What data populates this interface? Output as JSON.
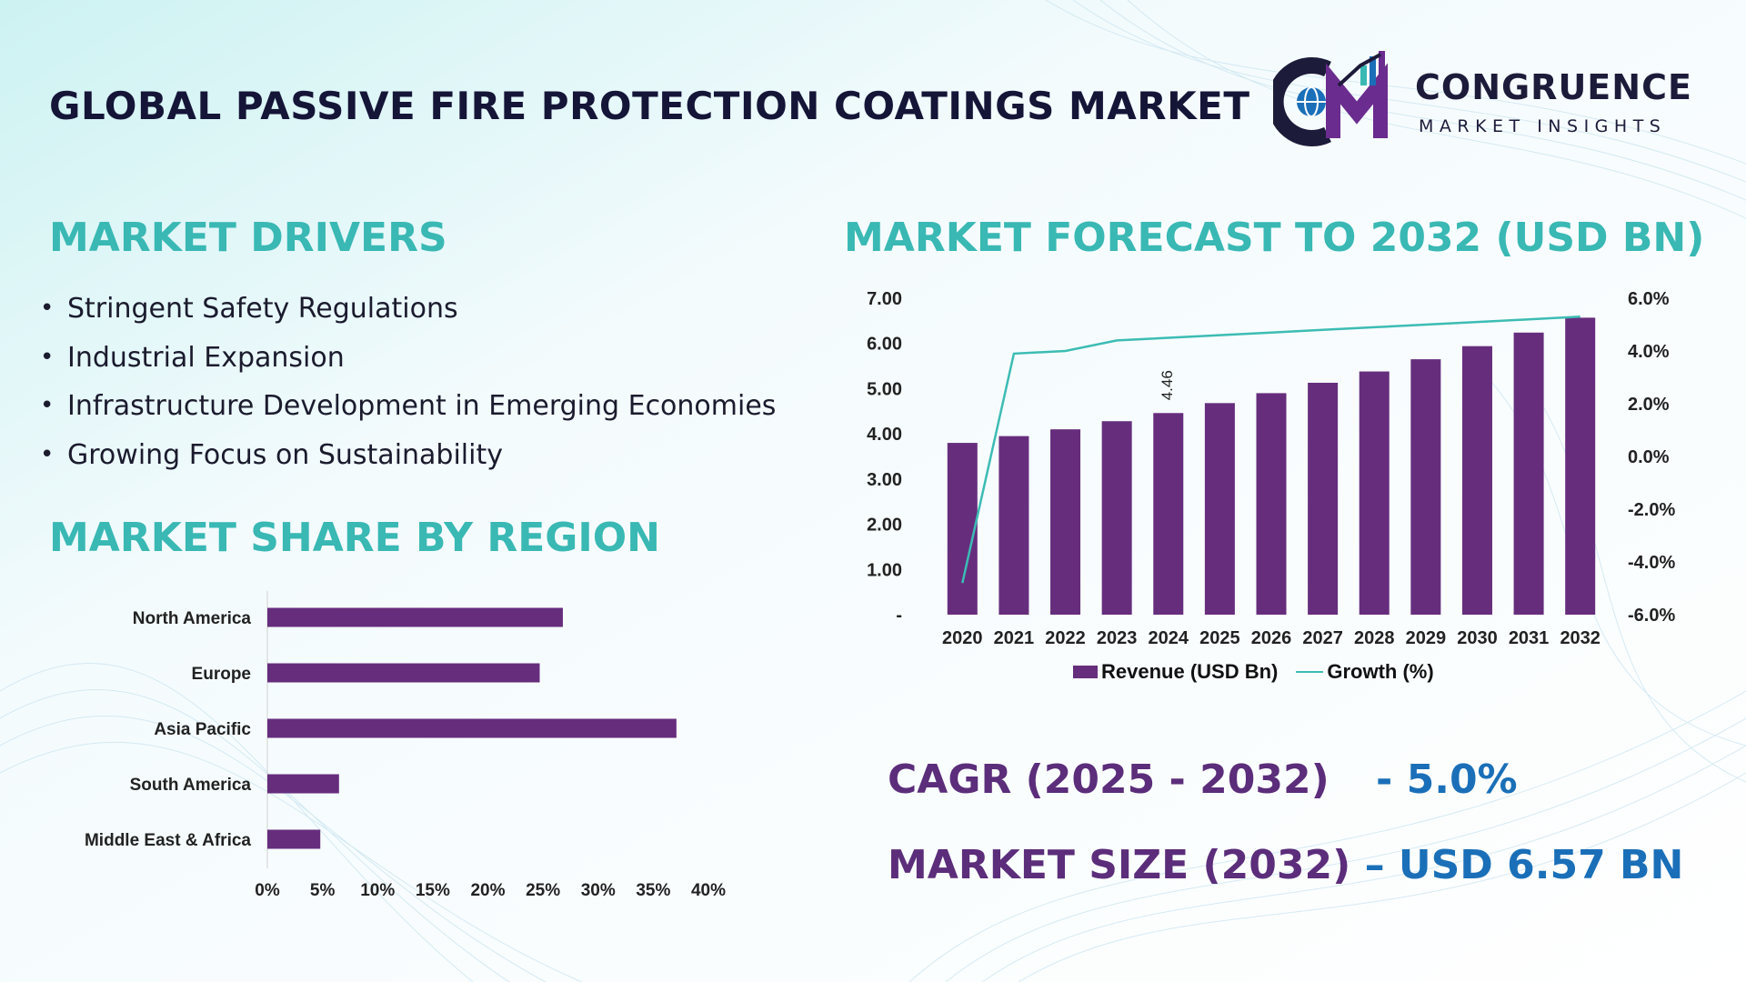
{
  "header": {
    "title": "GLOBAL PASSIVE FIRE PROTECTION COATINGS MARKET"
  },
  "logo": {
    "word": "CONGRUENCE",
    "sub": "MARKET INSIGHTS",
    "colors": {
      "dark": "#1d1b3a",
      "purple": "#6a2c8e",
      "blue": "#1a6fb8",
      "teal": "#39b8b4"
    }
  },
  "drivers": {
    "title": "MARKET DRIVERS",
    "items": [
      "Stringent Safety Regulations",
      "Industrial Expansion",
      "Infrastructure Development in Emerging Economies",
      "Growing Focus on Sustainability"
    ]
  },
  "region": {
    "title": "MARKET SHARE BY REGION"
  },
  "forecast": {
    "title": "MARKET FORECAST TO 2032 (USD BN)",
    "legend": {
      "bar": "Revenue (USD Bn)",
      "line": "Growth (%)"
    }
  },
  "stats": {
    "cagr_label": "CAGR (2025 - 2032)",
    "cagr_value": "- 5.0%",
    "size_label": "MARKET SIZE (2032)",
    "size_value": "– USD 6.57 BN"
  },
  "colors": {
    "accent_teal": "#39b8b4",
    "bar_purple": "#662d7d",
    "stat_purple": "#5b2d7a",
    "stat_blue": "#1a6fb8",
    "title_dark": "#151538"
  },
  "chart_data": [
    {
      "type": "bar",
      "orientation": "horizontal",
      "categories": [
        "North America",
        "Europe",
        "Asia Pacific",
        "South America",
        "Middle East & Africa"
      ],
      "values": [
        26.8,
        24.7,
        37.1,
        6.5,
        4.8
      ],
      "xlim": [
        0,
        40
      ],
      "xticks": [
        "0%",
        "5%",
        "10%",
        "15%",
        "20%",
        "25%",
        "30%",
        "35%",
        "40%"
      ],
      "grid": false
    },
    {
      "type": "bar",
      "categories": [
        "2020",
        "2021",
        "2022",
        "2023",
        "2024",
        "2025",
        "2026",
        "2027",
        "2028",
        "2029",
        "2030",
        "2031",
        "2032"
      ],
      "series": [
        {
          "name": "Revenue (USD Bn)",
          "type": "bar",
          "axis": "left",
          "values": [
            3.8,
            3.95,
            4.1,
            4.28,
            4.46,
            4.68,
            4.9,
            5.13,
            5.38,
            5.65,
            5.94,
            6.24,
            6.57
          ],
          "data_labels": {
            "4": "4.46"
          }
        },
        {
          "name": "Growth (%)",
          "type": "line",
          "axis": "right",
          "values": [
            -4.8,
            3.9,
            4.0,
            4.4,
            4.5,
            4.6,
            4.7,
            4.8,
            4.9,
            5.0,
            5.1,
            5.2,
            5.3
          ]
        }
      ],
      "ylim": [
        0,
        7
      ],
      "yticks": [
        "-",
        "1.00",
        "2.00",
        "3.00",
        "4.00",
        "5.00",
        "6.00",
        "7.00"
      ],
      "y2lim": [
        -6,
        6
      ],
      "y2ticks": [
        "-6.0%",
        "-4.0%",
        "-2.0%",
        "0.0%",
        "2.0%",
        "4.0%",
        "6.0%"
      ],
      "legend": "bottom",
      "grid": false
    }
  ]
}
